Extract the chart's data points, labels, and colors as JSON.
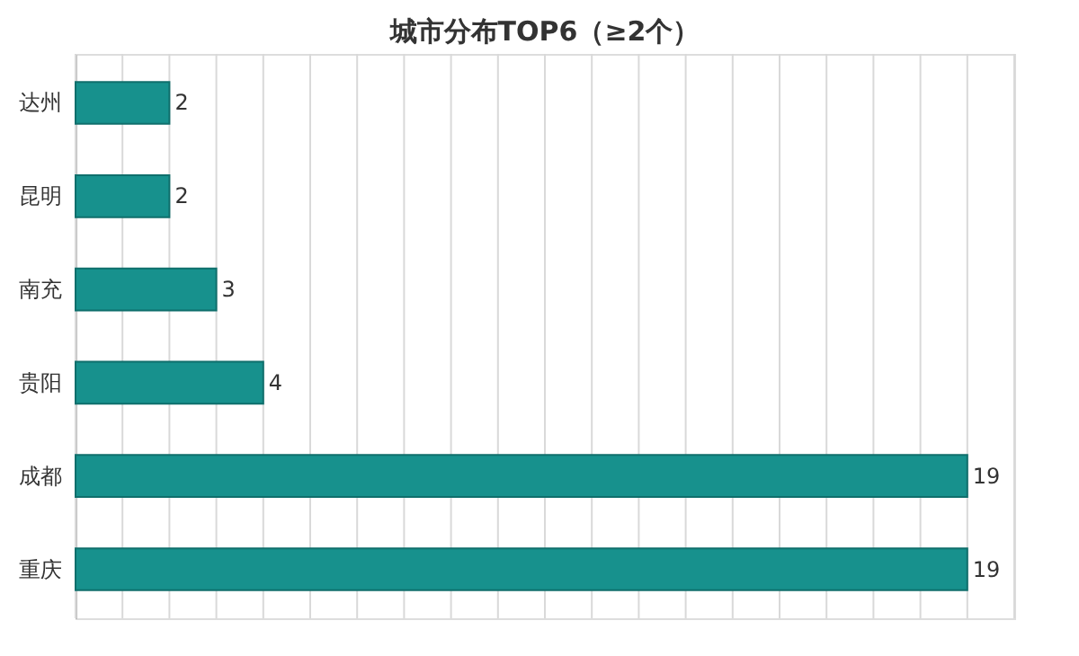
{
  "chart_data": {
    "type": "bar",
    "orientation": "horizontal",
    "title": "城市分布TOP6（≥2个）",
    "categories": [
      "达州",
      "昆明",
      "南充",
      "贵阳",
      "成都",
      "重庆"
    ],
    "values": [
      2,
      2,
      3,
      4,
      19,
      19
    ],
    "color": "#17918d",
    "xlim": [
      0,
      20
    ],
    "xticks": [
      {
        "value": 0,
        "label": null
      },
      {
        "value": 1,
        "label": null
      },
      {
        "value": 2,
        "label": null
      },
      {
        "value": 3,
        "label": null
      },
      {
        "value": 4,
        "label": null
      },
      {
        "value": 5,
        "label": null
      },
      {
        "value": 6,
        "label": null
      },
      {
        "value": 7,
        "label": null
      },
      {
        "value": 8,
        "label": null
      },
      {
        "value": 9,
        "label": null
      },
      {
        "value": 10,
        "label": null
      },
      {
        "value": 11,
        "label": null
      },
      {
        "value": 12,
        "label": null
      },
      {
        "value": 13,
        "label": null
      },
      {
        "value": 14,
        "label": null
      },
      {
        "value": 15,
        "label": null
      },
      {
        "value": 16,
        "label": null
      },
      {
        "value": 17,
        "label": null
      },
      {
        "value": 18,
        "label": null
      },
      {
        "value": 19,
        "label": null
      },
      {
        "value": 20,
        "label": null
      }
    ],
    "tick_labels": "y",
    "grid": "x",
    "data_labels": true
  }
}
